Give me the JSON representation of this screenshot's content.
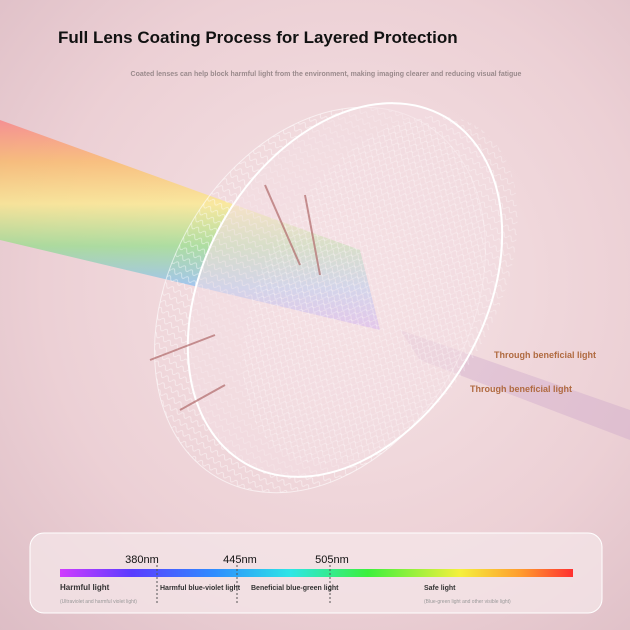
{
  "header": {
    "title": "Full Lens Coating Process for Layered Protection",
    "subtitle": "Coated lenses can help block harmful light from the environment, making imaging clearer and reducing visual fatigue"
  },
  "callouts": [
    "Through beneficial light",
    "Through beneficial light"
  ],
  "spectrum": {
    "wavelengths": [
      "380nm",
      "445nm",
      "505nm"
    ],
    "segments": [
      {
        "label": "Harmful light",
        "note": "(Ultraviolet and harmful violet light)"
      },
      {
        "label": "Harmful blue-violet light"
      },
      {
        "label": "Beneficial blue-green light"
      },
      {
        "label": "Safe light",
        "note": "(Blue-green light and other visible light)"
      }
    ]
  }
}
